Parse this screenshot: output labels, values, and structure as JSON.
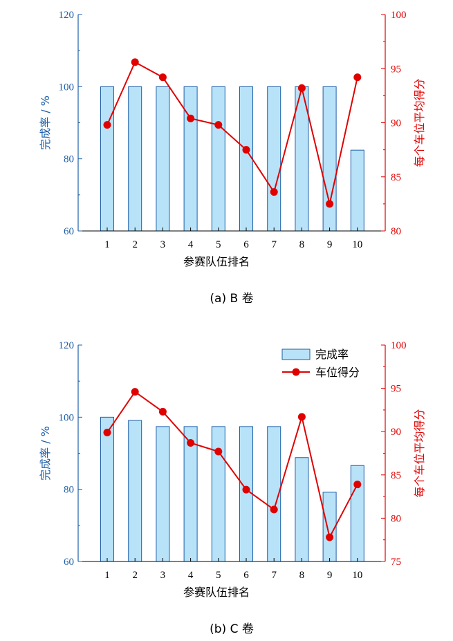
{
  "colors": {
    "bar_fill": "#b8e2f8",
    "bar_stroke": "#1d5fa8",
    "left_axis": "#1d5fa8",
    "right_axis": "#e00000",
    "line": "#e00000"
  },
  "legend": {
    "bar": "完成率",
    "line": "车位得分"
  },
  "chart_data": [
    {
      "type": "bar+line",
      "caption": "(a)  B 卷",
      "xlabel": "参赛队伍排名",
      "ylabel_left": "完成率 / %",
      "ylabel_right": "每个车位平均得分",
      "categories": [
        "1",
        "2",
        "3",
        "4",
        "5",
        "6",
        "7",
        "8",
        "9",
        "10"
      ],
      "ylim_left": [
        60,
        120
      ],
      "yticks_left": [
        60,
        80,
        100,
        120
      ],
      "ylim_right": [
        80,
        100
      ],
      "yticks_right": [
        80,
        85,
        90,
        95,
        100
      ],
      "series": [
        {
          "name": "完成率",
          "axis": "left",
          "type": "bar",
          "values": [
            100,
            100,
            100,
            100,
            100,
            100,
            100,
            100,
            100,
            82.4
          ]
        },
        {
          "name": "车位得分",
          "axis": "right",
          "type": "line",
          "values": [
            89.8,
            95.6,
            94.2,
            90.4,
            89.8,
            87.5,
            83.6,
            93.2,
            82.5,
            94.2
          ]
        }
      ],
      "legend": false
    },
    {
      "type": "bar+line",
      "caption": "(b)  C 卷",
      "xlabel": "参赛队伍排名",
      "ylabel_left": "完成率 / %",
      "ylabel_right": "每个车位平均得分",
      "categories": [
        "1",
        "2",
        "3",
        "4",
        "5",
        "6",
        "7",
        "8",
        "9",
        "10"
      ],
      "ylim_left": [
        60,
        120
      ],
      "yticks_left": [
        60,
        80,
        100,
        120
      ],
      "ylim_right": [
        75,
        100
      ],
      "yticks_right": [
        75,
        80,
        85,
        90,
        95,
        100
      ],
      "series": [
        {
          "name": "完成率",
          "axis": "left",
          "type": "bar",
          "values": [
            100,
            99.1,
            97.4,
            97.4,
            97.4,
            97.4,
            97.4,
            88.8,
            79.2,
            86.6
          ]
        },
        {
          "name": "车位得分",
          "axis": "right",
          "type": "line",
          "values": [
            89.9,
            94.6,
            92.3,
            88.7,
            87.7,
            83.3,
            81.0,
            91.7,
            77.8,
            83.9
          ]
        }
      ],
      "legend": "top-right"
    }
  ]
}
